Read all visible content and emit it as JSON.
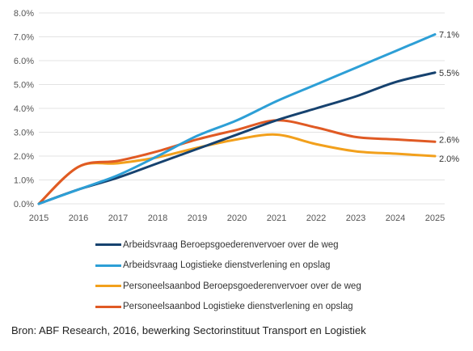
{
  "chart_data": {
    "type": "line",
    "x": [
      2015,
      2016,
      2017,
      2018,
      2019,
      2020,
      2021,
      2022,
      2023,
      2024,
      2025
    ],
    "ylim": [
      0,
      8
    ],
    "yticks": [
      "0.0%",
      "1.0%",
      "2.0%",
      "3.0%",
      "4.0%",
      "5.0%",
      "6.0%",
      "7.0%",
      "8.0%"
    ],
    "xticks": [
      "2015",
      "2016",
      "2017",
      "2018",
      "2019",
      "2020",
      "2021",
      "2022",
      "2023",
      "2024",
      "2025"
    ],
    "grid": "horizontal",
    "legend_position": "bottom",
    "series": [
      {
        "name": "Arbeidsvraag Beroepsgoederenvervoer over de weg",
        "color": "#16426f",
        "values": [
          0,
          0.6,
          1.1,
          1.7,
          2.3,
          2.9,
          3.5,
          4.0,
          4.5,
          5.1,
          5.5
        ],
        "end_label": "5.5%"
      },
      {
        "name": "Arbeidsvraag Logistieke dienstverlening en opslag",
        "color": "#2d9fd6",
        "values": [
          0,
          0.6,
          1.2,
          2.0,
          2.85,
          3.5,
          4.3,
          5.0,
          5.7,
          6.4,
          7.1
        ],
        "end_label": "7.1%"
      },
      {
        "name": "Personeelsaanbod Beroepsgoederenvervoer over de weg",
        "color": "#f2a01c",
        "values": [
          0,
          1.55,
          1.7,
          1.95,
          2.35,
          2.7,
          2.9,
          2.5,
          2.2,
          2.1,
          2.0
        ],
        "end_label": "2.0%"
      },
      {
        "name": "Personeelsaanbod Logistieke dienstverlening en opslag",
        "color": "#e05a24",
        "values": [
          0,
          1.55,
          1.8,
          2.2,
          2.7,
          3.1,
          3.5,
          3.2,
          2.8,
          2.7,
          2.6
        ],
        "end_label": "2.6%"
      }
    ]
  },
  "source": "Bron: ABF Research, 2016, bewerking Sectorinstituut Transport en Logistiek"
}
